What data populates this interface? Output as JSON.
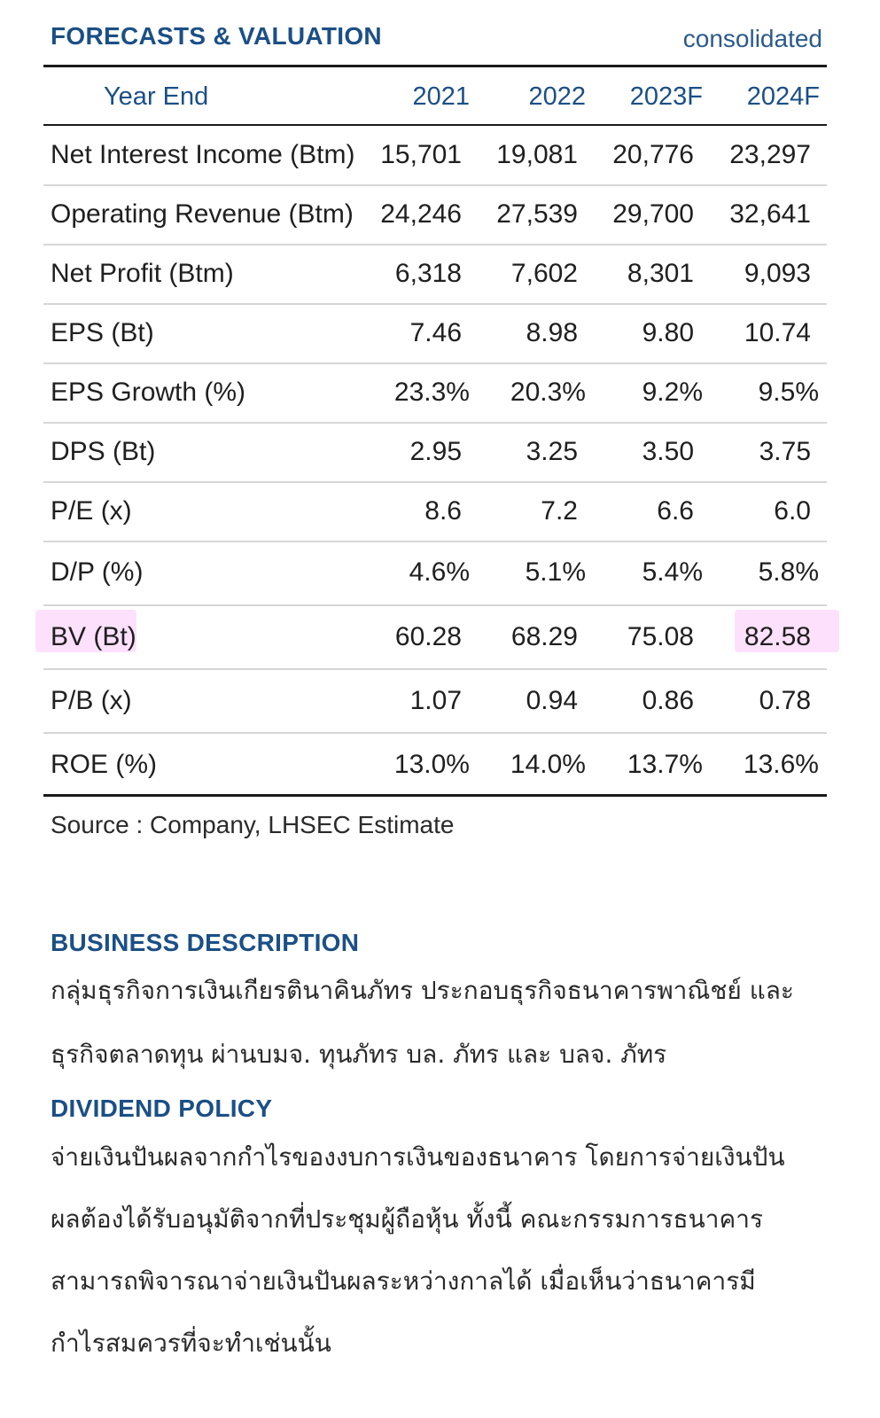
{
  "forecasts": {
    "title": "FORECASTS & VALUATION",
    "basis": "consolidated",
    "header": {
      "label": "Year End",
      "years": [
        "2021",
        "2022",
        "2023F",
        "2024F"
      ]
    },
    "rows": [
      {
        "label": "Net Interest Income (Btm)",
        "values": [
          "15,701",
          "19,081",
          "20,776",
          "23,297"
        ]
      },
      {
        "label": "Operating Revenue (Btm)",
        "values": [
          "24,246",
          "27,539",
          "29,700",
          "32,641"
        ]
      },
      {
        "label": "Net Profit (Btm)",
        "values": [
          "6,318",
          "7,602",
          "8,301",
          "9,093"
        ]
      },
      {
        "label": "EPS (Bt)",
        "values": [
          "7.46",
          "8.98",
          "9.80",
          "10.74"
        ]
      },
      {
        "label": "EPS Growth (%)",
        "values": [
          "23.3%",
          "20.3%",
          "9.2%",
          "9.5%"
        ]
      },
      {
        "label": "DPS (Bt)",
        "values": [
          "2.95",
          "3.25",
          "3.50",
          "3.75"
        ]
      },
      {
        "label": "P/E (x)",
        "values": [
          "8.6",
          "7.2",
          "6.6",
          "6.0"
        ]
      },
      {
        "label": "D/P (%)",
        "values": [
          "4.6%",
          "5.1%",
          "5.4%",
          "5.8%"
        ]
      },
      {
        "label": "BV (Bt)",
        "values": [
          "60.28",
          "68.29",
          "75.08",
          "82.58"
        ]
      },
      {
        "label": "P/B (x)",
        "values": [
          "1.07",
          "0.94",
          "0.86",
          "0.78"
        ]
      },
      {
        "label": "ROE (%)",
        "values": [
          "13.0%",
          "14.0%",
          "13.7%",
          "13.6%"
        ]
      }
    ],
    "source": "Source : Company, LHSEC Estimate",
    "highlight_color": "#f878f0"
  },
  "business": {
    "title": "BUSINESS DESCRIPTION",
    "lines": [
      "กลุ่มธุรกิจการเงินเกียรตินาคินภัทร ประกอบธุรกิจธนาคารพาณิชย์ และ",
      "ธุรกิจตลาดทุน ผ่านบมจ. ทุนภัทร บล. ภัทร และ บลจ. ภัทร"
    ]
  },
  "dividend": {
    "title": "DIVIDEND POLICY",
    "lines": [
      "จ่ายเงินปันผลจากกำไรของงบการเงินของธนาคาร โดยการจ่ายเงินปัน",
      "ผลต้องได้รับอนุมัติจากที่ประชุมผู้ถือหุ้น   ทั้งนี้ คณะกรรมการธนาคาร",
      "สามารถพิจารณาจ่ายเงินปันผลระหว่างกาลได้ เมื่อเห็นว่าธนาคารมี",
      "กำไรสมควรที่จะทำเช่นนั้น"
    ]
  },
  "colors": {
    "heading": "#1b4f86",
    "rule": "#1a1a1a",
    "row_divider": "#d6d6d6"
  }
}
